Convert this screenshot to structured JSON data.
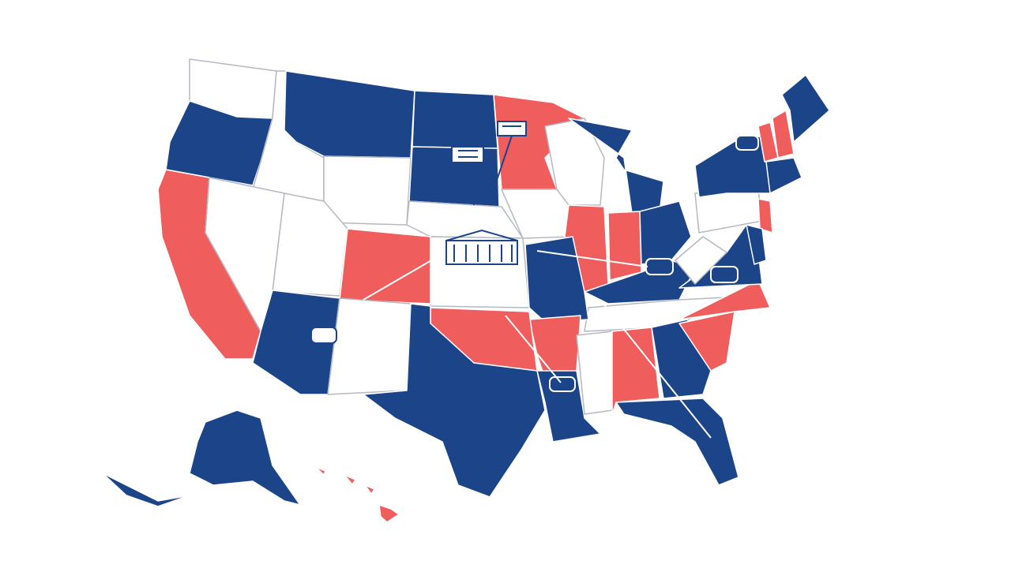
{
  "map": {
    "fills": {
      "blue": "#1b4489",
      "red": "#ef5d5c",
      "white": "#ffffff"
    },
    "border": "#b4b8c0"
  }
}
